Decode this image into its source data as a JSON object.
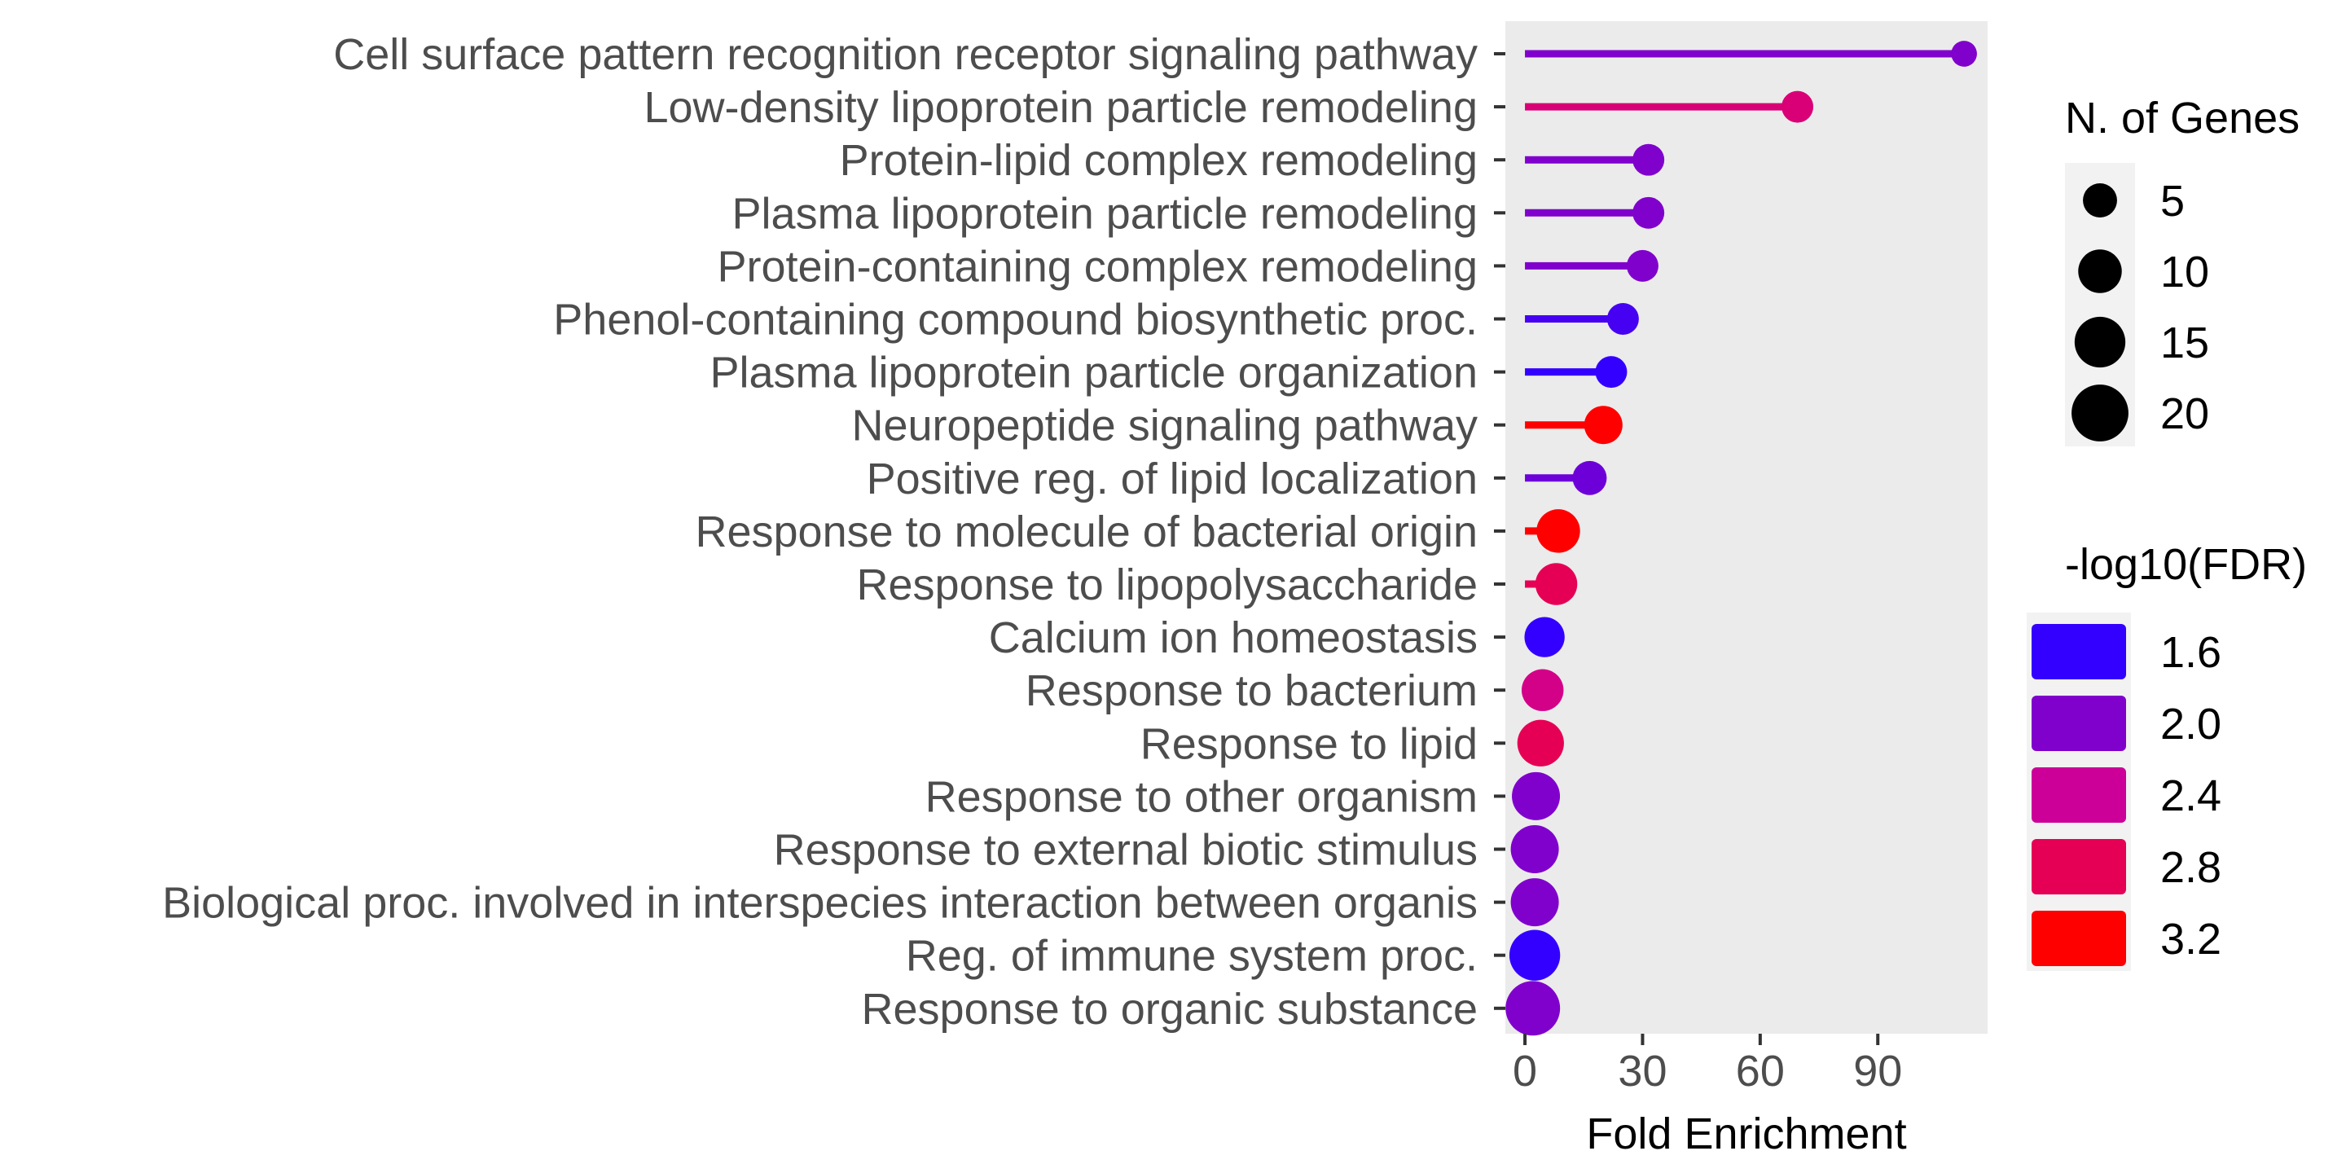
{
  "chart_data": {
    "type": "lollipop",
    "xlabel": "Fold Enrichment",
    "xlim": [
      -5,
      118
    ],
    "xticks": [
      0,
      30,
      60,
      90
    ],
    "categories": [
      "Cell surface pattern recognition receptor signaling pathway",
      "Low-density lipoprotein particle remodeling",
      "Protein-lipid complex remodeling",
      "Plasma lipoprotein particle remodeling",
      "Protein-containing complex remodeling",
      "Phenol-containing compound biosynthetic proc.",
      "Plasma lipoprotein particle organization",
      "Neuropeptide signaling pathway",
      "Positive reg. of lipid localization",
      "Response to molecule of bacterial origin",
      "Response to lipopolysaccharide",
      "Calcium ion homeostasis",
      "Response to bacterium",
      "Response to lipid",
      "Response to other organism",
      "Response to external biotic stimulus",
      "Biological proc. involved in interspecies interaction between organis",
      "Reg. of immune system proc.",
      "Response to organic substance"
    ],
    "fold_enrichment": [
      112,
      69.5,
      31.5,
      31.5,
      30,
      25,
      22,
      20,
      16.5,
      8.5,
      8,
      5,
      4.5,
      4,
      2.8,
      2.5,
      2.5,
      2.5,
      2
    ],
    "n_genes": [
      2,
      4,
      4,
      4,
      4,
      4,
      4,
      7,
      5,
      10,
      9,
      8,
      9,
      12,
      13,
      13,
      13,
      15,
      18
    ],
    "neg_log10_fdr": [
      2.0,
      2.6,
      2.0,
      2.0,
      2.0,
      1.7,
      1.5,
      3.2,
      1.9,
      3.2,
      2.8,
      1.6,
      2.5,
      2.8,
      2.0,
      2.0,
      2.0,
      1.6,
      2.0
    ],
    "size_legend": {
      "title": "N. of Genes",
      "values": [
        5,
        10,
        15,
        20
      ]
    },
    "color_legend": {
      "title": "-log10(FDR)",
      "values": [
        1.6,
        2.0,
        2.4,
        2.8,
        3.2
      ],
      "colors": [
        "#3300ff",
        "#8000cc",
        "#cc0099",
        "#e60055",
        "#ff0000"
      ]
    },
    "panel_background": "#ebebeb",
    "grid": false
  }
}
